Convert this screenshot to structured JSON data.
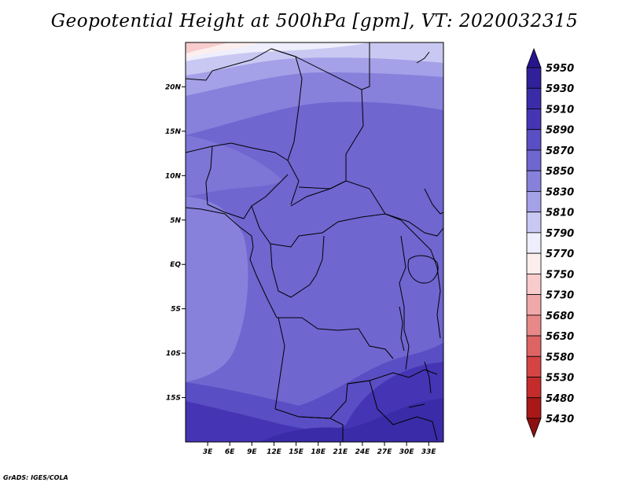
{
  "title": "Geopotential Height at 500hPa [gpm], VT: 2020032315",
  "credit": "GrADS: IGES/COLA",
  "map": {
    "lon_range": [
      0,
      35
    ],
    "lat_range": [
      -20,
      25
    ],
    "lat_ticks": [
      {
        "value": 20,
        "label": "20N"
      },
      {
        "value": 15,
        "label": "15N"
      },
      {
        "value": 10,
        "label": "10N"
      },
      {
        "value": 5,
        "label": "5N"
      },
      {
        "value": 0,
        "label": "EQ"
      },
      {
        "value": -5,
        "label": "5S"
      },
      {
        "value": -10,
        "label": "10S"
      },
      {
        "value": -15,
        "label": "15S"
      }
    ],
    "lon_ticks": [
      {
        "value": 3,
        "label": "3E"
      },
      {
        "value": 6,
        "label": "6E"
      },
      {
        "value": 9,
        "label": "9E"
      },
      {
        "value": 12,
        "label": "12E"
      },
      {
        "value": 15,
        "label": "15E"
      },
      {
        "value": 18,
        "label": "18E"
      },
      {
        "value": 21,
        "label": "21E"
      },
      {
        "value": 24,
        "label": "24E"
      },
      {
        "value": 27,
        "label": "27E"
      },
      {
        "value": 30,
        "label": "30E"
      },
      {
        "value": 33,
        "label": "33E"
      }
    ]
  },
  "colorbar": {
    "levels": [
      "5950",
      "5930",
      "5910",
      "5890",
      "5870",
      "5850",
      "5830",
      "5810",
      "5790",
      "5770",
      "5750",
      "5730",
      "5680",
      "5630",
      "5580",
      "5530",
      "5480",
      "5430"
    ],
    "colors": [
      "#26158c",
      "#30209a",
      "#3a2ca8",
      "#4535b4",
      "#5a4ec4",
      "#6f66d0",
      "#8781dc",
      "#a4a1e8",
      "#c8c8f2",
      "#eeeefc",
      "#fdeeee",
      "#f8cccc",
      "#f0a8a8",
      "#e88888",
      "#de6464",
      "#d44444",
      "#c42c2c",
      "#a81818",
      "#8c1010"
    ]
  }
}
